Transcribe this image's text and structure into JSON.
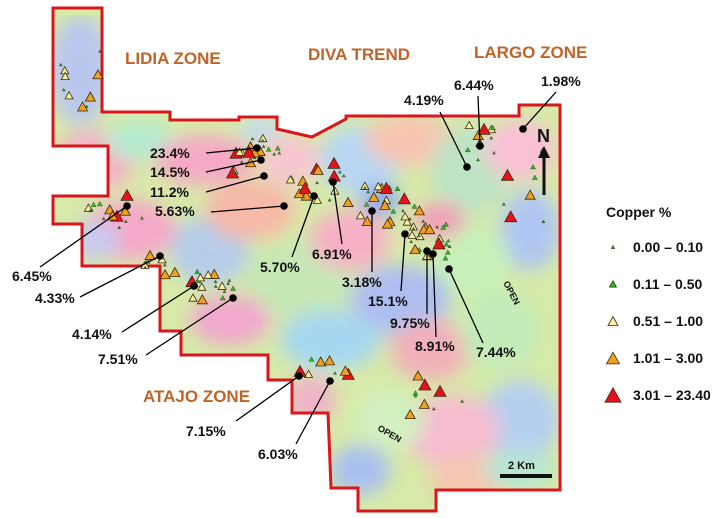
{
  "colors": {
    "border": "#d9161b",
    "zone_label": "#c0642a",
    "leader": "#000000"
  },
  "zones": {
    "lidia": "LIDIA ZONE",
    "diva": "DIVA TREND",
    "largo": "LARGO ZONE",
    "atajo": "ATAJO ZONE"
  },
  "open_labels": [
    "OPEN",
    "OPEN"
  ],
  "north_arrow": {
    "label": "N",
    "icon": "north-arrow-icon"
  },
  "scale_bar": {
    "label": "2 Km"
  },
  "legend": {
    "title": "Copper %",
    "items": [
      {
        "range": "0.00 – 0.10",
        "color": "#2a9a2a",
        "size": "tiny"
      },
      {
        "range": "0.11 – 0.50",
        "color": "#22c422",
        "size": "small"
      },
      {
        "range": "0.51 – 1.00",
        "color": "#f6f0a0",
        "size": "medium"
      },
      {
        "range": "1.01 – 3.00",
        "color": "#f0a020",
        "size": "large"
      },
      {
        "range": "3.01 – 23.40",
        "color": "#e8101a",
        "size": "xlarge"
      }
    ]
  },
  "grade_labels": [
    "23.4%",
    "14.5%",
    "11.2%",
    "5.63%",
    "6.45%",
    "4.33%",
    "4.14%",
    "7.51%",
    "5.70%",
    "6.91%",
    "3.18%",
    "15.1%",
    "9.75%",
    "8.91%",
    "7.44%",
    "4.19%",
    "6.44%",
    "1.98%",
    "7.15%",
    "6.03%"
  ]
}
